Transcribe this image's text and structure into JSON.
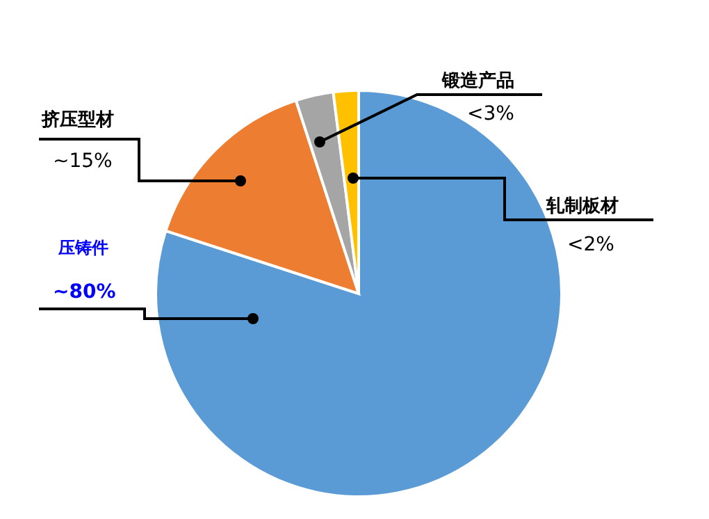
{
  "chart_data": {
    "type": "pie",
    "categories": [
      "压铸件",
      "挤压型材",
      "锻造产品",
      "轧制板材"
    ],
    "values": [
      80,
      15,
      3,
      2
    ],
    "value_labels": [
      "~80%",
      "~15%",
      "<3%",
      "<2%"
    ],
    "colors": [
      "#5b9bd5",
      "#ed7d31",
      "#a5a5a5",
      "#ffc000"
    ],
    "legend": false
  }
}
